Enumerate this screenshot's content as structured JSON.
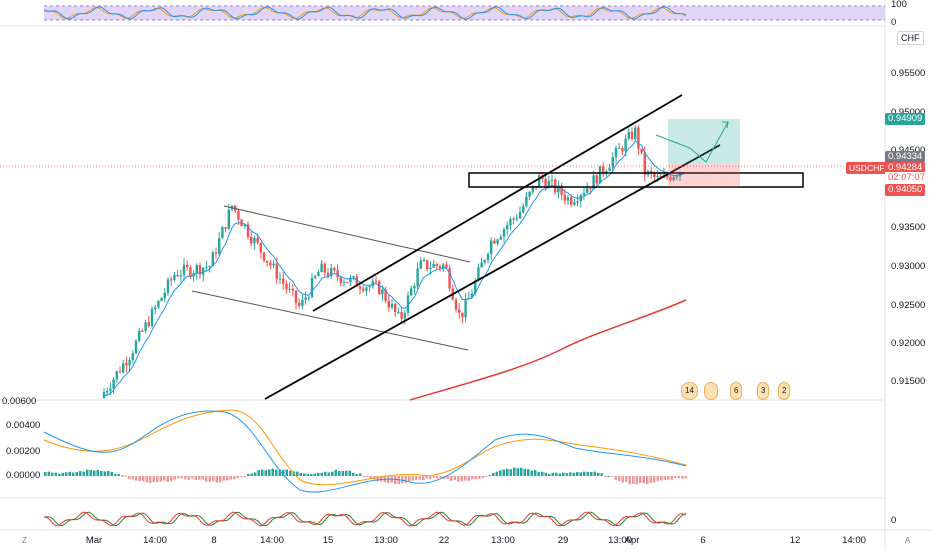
{
  "symbol": "USDCHF",
  "currency": "CHF",
  "corners": {
    "bottom_left": "Z",
    "bottom_right": "A"
  },
  "price_axis": [
    "0.95500",
    "0.95000",
    "0.94500",
    "0.93500",
    "0.93000",
    "0.92500",
    "0.92000",
    "0.91500"
  ],
  "price_tags": {
    "target": "0.94909",
    "upper": "0.94334",
    "current": "0.94284",
    "timer": "02:07:07",
    "stop": "0.94050"
  },
  "rsi_axis": {
    "top": "100",
    "bottom": "0"
  },
  "macd_axis": [
    "0.00600",
    "0.00400",
    "0.00200",
    "0.00000"
  ],
  "stoch_axis": "0",
  "time_axis": [
    "Mar",
    "14:00",
    "8",
    "14:00",
    "15",
    "13:00",
    "22",
    "13:00",
    "29",
    "13:00",
    "Apr",
    "6",
    "12",
    "14:00"
  ],
  "events": [
    "14",
    "6",
    "3",
    "2"
  ],
  "colors": {
    "up": "#26a69a",
    "down": "#ef5350",
    "ema_blue": "#2196f3",
    "ma_red": "#e53935",
    "macd_signal": "#ff9800",
    "rsi_band": "#e1d5f5"
  }
}
